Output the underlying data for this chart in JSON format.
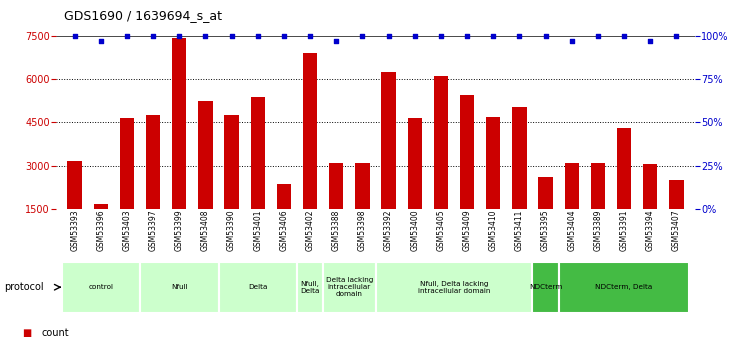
{
  "title": "GDS1690 / 1639694_s_at",
  "samples": [
    "GSM53393",
    "GSM53396",
    "GSM53403",
    "GSM53397",
    "GSM53399",
    "GSM53408",
    "GSM53390",
    "GSM53401",
    "GSM53406",
    "GSM53402",
    "GSM53388",
    "GSM53398",
    "GSM53392",
    "GSM53400",
    "GSM53405",
    "GSM53409",
    "GSM53410",
    "GSM53411",
    "GSM53395",
    "GSM53404",
    "GSM53389",
    "GSM53391",
    "GSM53394",
    "GSM53407"
  ],
  "counts": [
    3150,
    1650,
    4650,
    4750,
    7450,
    5250,
    4750,
    5400,
    2350,
    6900,
    3100,
    3100,
    6250,
    4650,
    6100,
    5450,
    4700,
    5050,
    2600,
    3100,
    3100,
    4300,
    3050,
    2500
  ],
  "percentiles": [
    100,
    97,
    100,
    100,
    100,
    100,
    100,
    100,
    100,
    100,
    97,
    100,
    100,
    100,
    100,
    100,
    100,
    100,
    100,
    97,
    100,
    100,
    97,
    100
  ],
  "bar_color": "#cc0000",
  "dot_color": "#0000cc",
  "ylim_left": [
    1500,
    7500
  ],
  "ylim_right": [
    0,
    100
  ],
  "yticks_left": [
    1500,
    3000,
    4500,
    6000,
    7500
  ],
  "yticks_right": [
    0,
    25,
    50,
    75,
    100
  ],
  "protocol_row": [
    {
      "label": "control",
      "start": 0,
      "end": 3,
      "color": "#ccffcc"
    },
    {
      "label": "Nfull",
      "start": 3,
      "end": 6,
      "color": "#ccffcc"
    },
    {
      "label": "Delta",
      "start": 6,
      "end": 9,
      "color": "#ccffcc"
    },
    {
      "label": "Nfull,\nDelta",
      "start": 9,
      "end": 10,
      "color": "#ccffcc"
    },
    {
      "label": "Delta lacking\nintracellular\ndomain",
      "start": 10,
      "end": 12,
      "color": "#ccffcc"
    },
    {
      "label": "Nfull, Delta lacking\nintracellular domain",
      "start": 12,
      "end": 18,
      "color": "#ccffcc"
    },
    {
      "label": "NDCterm",
      "start": 18,
      "end": 19,
      "color": "#44bb44"
    },
    {
      "label": "NDCterm, Delta",
      "start": 19,
      "end": 24,
      "color": "#44bb44"
    }
  ]
}
